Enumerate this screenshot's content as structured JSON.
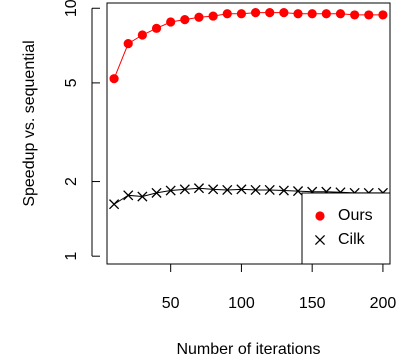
{
  "chart_data": {
    "type": "line",
    "xlabel": "Number of iterations",
    "ylabel": "Speedup vs. sequential",
    "x_ticks": [
      50,
      100,
      150,
      200
    ],
    "y_ticks": [
      1,
      2,
      5,
      10
    ],
    "y_scale": "log",
    "xlim": [
      5,
      205
    ],
    "ylim": [
      0.93,
      10.5
    ],
    "legend_position": "bottom-right",
    "x": [
      10,
      20,
      30,
      40,
      50,
      60,
      70,
      80,
      90,
      100,
      110,
      120,
      130,
      140,
      150,
      160,
      170,
      180,
      190,
      200
    ],
    "series": [
      {
        "name": "Ours",
        "color": "#ff0000",
        "marker": "filled-circle",
        "connected": true,
        "values": [
          5.2,
          7.2,
          7.8,
          8.3,
          8.8,
          9.0,
          9.2,
          9.3,
          9.5,
          9.5,
          9.6,
          9.6,
          9.6,
          9.5,
          9.5,
          9.5,
          9.5,
          9.4,
          9.4,
          9.4
        ]
      },
      {
        "name": "Cilk",
        "color": "#000000",
        "marker": "cross",
        "connected": true,
        "values": [
          1.62,
          1.76,
          1.74,
          1.8,
          1.84,
          1.86,
          1.88,
          1.86,
          1.85,
          1.86,
          1.85,
          1.85,
          1.84,
          1.83,
          1.82,
          1.82,
          1.81,
          1.8,
          1.8,
          1.8
        ]
      }
    ]
  }
}
